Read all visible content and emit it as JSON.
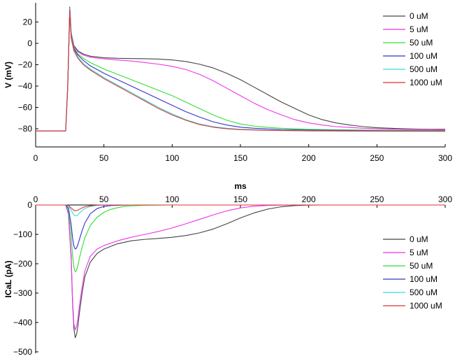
{
  "chart_data": [
    {
      "type": "line",
      "title": "",
      "xlabel": "",
      "ylabel": "V (mV)",
      "xlim": [
        0,
        300
      ],
      "ylim": [
        -97,
        38
      ],
      "xticks": [
        0,
        50,
        100,
        150,
        200,
        250,
        300
      ],
      "yticks": [
        -80,
        -60,
        -40,
        -20,
        0,
        20
      ],
      "grid": false,
      "legend": "top-right",
      "series": [
        {
          "name": "0 uM",
          "color": "#444444",
          "x": [
            0,
            22,
            23.5,
            25,
            26,
            28,
            31,
            35,
            40,
            50,
            60,
            70,
            80,
            90,
            100,
            110,
            120,
            130,
            140,
            150,
            160,
            170,
            180,
            190,
            200,
            210,
            220,
            230,
            240,
            250,
            260,
            270,
            280,
            290,
            300
          ],
          "y": [
            -82,
            -82,
            -40,
            34,
            10,
            -2,
            -7,
            -10,
            -12,
            -13.5,
            -14,
            -14.2,
            -14.4,
            -14.7,
            -15.5,
            -17,
            -19.5,
            -23,
            -28,
            -34,
            -41,
            -48,
            -55,
            -61,
            -67,
            -71.5,
            -74.5,
            -76.5,
            -78,
            -79,
            -79.5,
            -80,
            -80.3,
            -80.5,
            -80.5
          ]
        },
        {
          "name": "5 uM",
          "color": "#ee33ee",
          "x": [
            0,
            22,
            23.5,
            25,
            26,
            28,
            31,
            35,
            40,
            50,
            60,
            70,
            80,
            90,
            100,
            110,
            120,
            130,
            140,
            150,
            160,
            170,
            180,
            190,
            200,
            210,
            220,
            240,
            260,
            280,
            300
          ],
          "y": [
            -82,
            -82,
            -40,
            33,
            9,
            -3,
            -8,
            -11,
            -13,
            -14.5,
            -15.5,
            -16.5,
            -18,
            -19.5,
            -21.5,
            -24.5,
            -29,
            -35,
            -42,
            -49,
            -56,
            -62,
            -67,
            -71.5,
            -74.5,
            -76.5,
            -78,
            -79.5,
            -80.3,
            -80.7,
            -81
          ]
        },
        {
          "name": "50 uM",
          "color": "#33dd33",
          "x": [
            0,
            22,
            23.5,
            25,
            26,
            28,
            31,
            35,
            40,
            50,
            60,
            70,
            80,
            90,
            100,
            110,
            120,
            130,
            140,
            150,
            160,
            170,
            180,
            200,
            220,
            250,
            300
          ],
          "y": [
            -82,
            -82,
            -40,
            32,
            8,
            -4,
            -10,
            -14,
            -18,
            -24,
            -29,
            -34,
            -39,
            -44,
            -49,
            -55,
            -61,
            -67,
            -72,
            -75.5,
            -77.5,
            -78.7,
            -79.5,
            -80.5,
            -81,
            -81.3,
            -81.6
          ]
        },
        {
          "name": "100 uM",
          "color": "#3333cc",
          "x": [
            0,
            22,
            23.5,
            25,
            26,
            28,
            31,
            35,
            40,
            50,
            60,
            70,
            80,
            90,
            100,
            110,
            120,
            130,
            140,
            150,
            160,
            180,
            200,
            250,
            300
          ],
          "y": [
            -82,
            -82,
            -40,
            31,
            7,
            -5,
            -11,
            -16,
            -21,
            -28,
            -34,
            -40,
            -46,
            -52,
            -58,
            -64,
            -69,
            -73.5,
            -76.5,
            -78.5,
            -79.5,
            -80.7,
            -81.2,
            -81.7,
            -82
          ]
        },
        {
          "name": "500 uM",
          "color": "#33dddd",
          "x": [
            0,
            22,
            23.5,
            25,
            26,
            28,
            31,
            35,
            40,
            50,
            60,
            70,
            80,
            90,
            100,
            110,
            120,
            130,
            140,
            150,
            170,
            200,
            250,
            300
          ],
          "y": [
            -82,
            -82,
            -40,
            30,
            6,
            -6,
            -13,
            -19,
            -24,
            -32,
            -39,
            -46,
            -53,
            -60,
            -66,
            -71.5,
            -75.5,
            -78,
            -79.5,
            -80.5,
            -81.3,
            -81.8,
            -82,
            -82.2
          ]
        },
        {
          "name": "1000 uM",
          "color": "#dd3333",
          "x": [
            0,
            22,
            23.5,
            25,
            26,
            28,
            31,
            35,
            40,
            50,
            60,
            70,
            80,
            90,
            100,
            110,
            120,
            130,
            140,
            150,
            170,
            200,
            250,
            300
          ],
          "y": [
            -82,
            -82,
            -40,
            30,
            5,
            -7,
            -14,
            -20,
            -25,
            -33,
            -40,
            -47,
            -54,
            -61,
            -67,
            -72,
            -76,
            -78.5,
            -80,
            -80.8,
            -81.5,
            -82,
            -82.2,
            -82.4
          ]
        }
      ]
    },
    {
      "type": "line",
      "title": "",
      "xlabel": "ms",
      "ylabel": "ICaL (pA)",
      "xlim": [
        0,
        300
      ],
      "ylim": [
        -505,
        0
      ],
      "xticks": [
        0,
        50,
        100,
        150,
        200,
        250,
        300
      ],
      "yticks": [
        0,
        -100,
        -200,
        -300,
        -400,
        -500
      ],
      "grid": false,
      "legend": "right",
      "series": [
        {
          "name": "0 uM",
          "color": "#444444",
          "x": [
            0,
            22,
            24,
            26,
            27,
            28,
            29,
            30,
            31,
            32,
            34,
            36,
            40,
            45,
            50,
            60,
            70,
            80,
            90,
            100,
            110,
            120,
            130,
            140,
            150,
            160,
            170,
            180,
            190,
            200,
            210,
            220,
            300
          ],
          "y": [
            0,
            0,
            -30,
            -180,
            -330,
            -420,
            -452,
            -440,
            -410,
            -370,
            -300,
            -245,
            -195,
            -165,
            -150,
            -132,
            -122,
            -117,
            -114,
            -110,
            -104,
            -95,
            -82,
            -64,
            -44,
            -27,
            -14,
            -6,
            -2,
            -0.5,
            0,
            0,
            0
          ]
        },
        {
          "name": "5 uM",
          "color": "#ee33ee",
          "x": [
            0,
            22,
            24,
            26,
            27,
            28,
            29,
            30,
            31,
            32,
            34,
            36,
            40,
            45,
            50,
            60,
            70,
            80,
            90,
            100,
            110,
            120,
            130,
            140,
            150,
            160,
            170,
            180,
            190,
            200,
            300
          ],
          "y": [
            0,
            0,
            -28,
            -170,
            -320,
            -405,
            -425,
            -412,
            -385,
            -345,
            -280,
            -225,
            -175,
            -150,
            -138,
            -122,
            -110,
            -100,
            -90,
            -78,
            -64,
            -49,
            -34,
            -20,
            -10,
            -4,
            -1.5,
            -0.5,
            0,
            0,
            0
          ]
        },
        {
          "name": "50 uM",
          "color": "#33dd33",
          "x": [
            0,
            22,
            24,
            26,
            27,
            28,
            29,
            30,
            31,
            32,
            34,
            36,
            40,
            45,
            50,
            55,
            60,
            65,
            70,
            80,
            90,
            100,
            110,
            120,
            300
          ],
          "y": [
            0,
            0,
            -15,
            -100,
            -170,
            -212,
            -228,
            -222,
            -205,
            -182,
            -145,
            -112,
            -70,
            -42,
            -25,
            -15,
            -9,
            -5,
            -3,
            -1,
            -0.5,
            0,
            0,
            0,
            0
          ]
        },
        {
          "name": "100 uM",
          "color": "#3333cc",
          "x": [
            0,
            22,
            24,
            26,
            27,
            28,
            29,
            30,
            31,
            32,
            34,
            36,
            40,
            45,
            50,
            55,
            60,
            70,
            80,
            300
          ],
          "y": [
            0,
            0,
            -10,
            -65,
            -110,
            -140,
            -150,
            -146,
            -134,
            -118,
            -88,
            -62,
            -30,
            -12,
            -5,
            -2,
            -1,
            0,
            0,
            0
          ]
        },
        {
          "name": "500 uM",
          "color": "#33dddd",
          "x": [
            0,
            22,
            24,
            26,
            28,
            29,
            30,
            31,
            32,
            34,
            36,
            40,
            45,
            50,
            60,
            300
          ],
          "y": [
            0,
            0,
            -3,
            -18,
            -34,
            -37,
            -36,
            -33,
            -28,
            -19,
            -12,
            -5,
            -1.5,
            -0.5,
            0,
            0
          ]
        },
        {
          "name": "1000 uM",
          "color": "#dd3333",
          "x": [
            0,
            22,
            24,
            26,
            28,
            29,
            30,
            32,
            34,
            36,
            40,
            45,
            50,
            300
          ],
          "y": [
            0,
            0,
            -1.5,
            -10,
            -18,
            -20,
            -19,
            -15,
            -10,
            -6,
            -2.5,
            -0.5,
            0,
            0
          ]
        }
      ]
    }
  ]
}
